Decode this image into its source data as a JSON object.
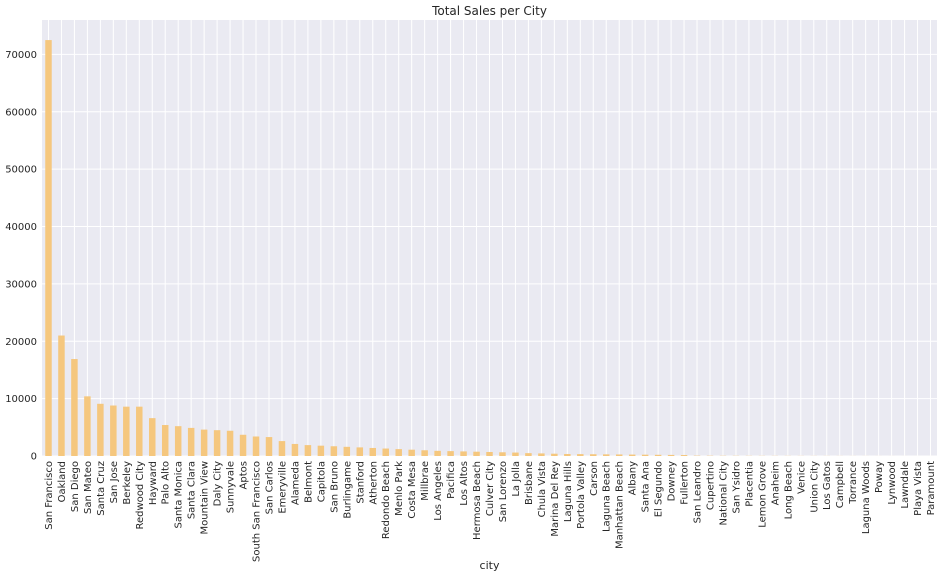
{
  "chart_data": {
    "type": "bar",
    "title": "Total Sales per City",
    "xlabel": "city",
    "ylabel": "",
    "ylim": [
      0,
      76000
    ],
    "yticks": [
      0,
      10000,
      20000,
      30000,
      40000,
      50000,
      60000,
      70000
    ],
    "grid": true,
    "bar_color": "#f5c77e",
    "background_color": "#eaeaf2",
    "grid_color": "#ffffff",
    "categories": [
      "San Francisco",
      "Oakland",
      "San Diego",
      "San Mateo",
      "Santa Cruz",
      "San Jose",
      "Berkeley",
      "Redwood City",
      "Hayward",
      "Palo Alto",
      "Santa Monica",
      "Santa Clara",
      "Mountain View",
      "Daly City",
      "Sunnyvale",
      "Aptos",
      "South San Francisco",
      "San Carlos",
      "Emeryville",
      "Alameda",
      "Belmont",
      "Capitola",
      "San Bruno",
      "Burlingame",
      "Stanford",
      "Atherton",
      "Redondo Beach",
      "Menlo Park",
      "Costa Mesa",
      "Millbrae",
      "Los Angeles",
      "Pacifica",
      "Los Altos",
      "Hermosa Beach",
      "Culver City",
      "San Lorenzo",
      "La Jolla",
      "Brisbane",
      "Chula Vista",
      "Marina Del Rey",
      "Laguna Hills",
      "Portola Valley",
      "Carson",
      "Laguna Beach",
      "Manhattan Beach",
      "Albany",
      "Santa Ana",
      "El Segundo",
      "Downey",
      "Fullerton",
      "San Leandro",
      "Cupertino",
      "National City",
      "San Ysidro",
      "Placentia",
      "Lemon Grove",
      "Anaheim",
      "Long Beach",
      "Venice",
      "Union City",
      "Los Gatos",
      "Campbell",
      "Torrance",
      "Laguna Woods",
      "Poway",
      "Lynwood",
      "Lawndale",
      "Playa Vista",
      "Paramount"
    ],
    "values": [
      72500,
      21000,
      16900,
      10400,
      9100,
      8800,
      8600,
      8600,
      6600,
      5400,
      5200,
      4900,
      4600,
      4500,
      4400,
      3700,
      3400,
      3300,
      2600,
      2100,
      1900,
      1800,
      1700,
      1600,
      1500,
      1400,
      1300,
      1200,
      1100,
      1000,
      900,
      850,
      800,
      750,
      700,
      650,
      600,
      500,
      450,
      400,
      350,
      330,
      310,
      290,
      270,
      250,
      230,
      210,
      190,
      170,
      60,
      50,
      40,
      35,
      30,
      28,
      25,
      22,
      20,
      18,
      16,
      14,
      12,
      10,
      8,
      6,
      5,
      4,
      3
    ]
  }
}
